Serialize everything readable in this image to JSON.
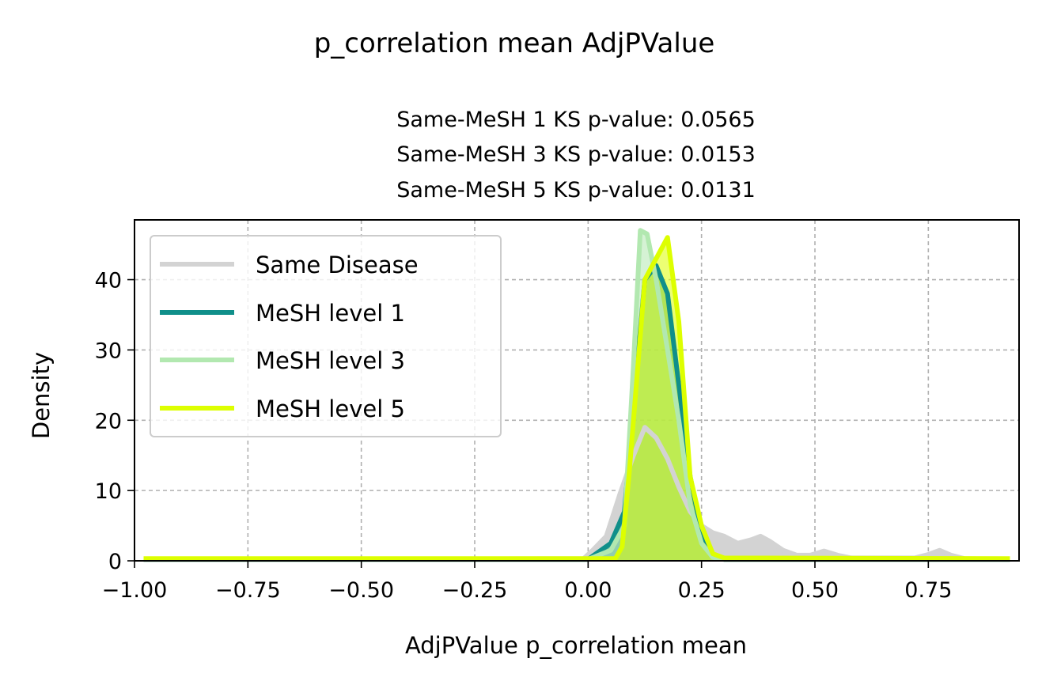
{
  "chart_data": {
    "type": "area",
    "suptitle": "p_correlation mean AdjPValue",
    "title_lines": [
      "Same-MeSH 1 KS p-value: 0.0565",
      "Same-MeSH 3 KS p-value: 0.0153",
      "Same-MeSH 5 KS p-value: 0.0131"
    ],
    "xlabel": "AdjPValue p_correlation mean",
    "ylabel": "Density",
    "xlim": [
      -1.0,
      0.95
    ],
    "ylim": [
      0,
      48.5
    ],
    "xticks": [
      -1.0,
      -0.75,
      -0.5,
      -0.25,
      0.0,
      0.25,
      0.5,
      0.75
    ],
    "xtick_labels": [
      "−1.00",
      "−0.75",
      "−0.50",
      "−0.25",
      "0.00",
      "0.25",
      "0.50",
      "0.75"
    ],
    "yticks": [
      0,
      10,
      20,
      30,
      40
    ],
    "ytick_labels": [
      "0",
      "10",
      "20",
      "30",
      "40"
    ],
    "grid": true,
    "legend_position": "upper-left",
    "series": [
      {
        "name": "Same Disease",
        "color": "#d3d3d3",
        "x": [
          -0.98,
          -0.01,
          0.01,
          0.04,
          0.07,
          0.1,
          0.125,
          0.15,
          0.175,
          0.2,
          0.225,
          0.25,
          0.275,
          0.3,
          0.33,
          0.36,
          0.38,
          0.4,
          0.43,
          0.46,
          0.49,
          0.52,
          0.55,
          0.58,
          0.72,
          0.75,
          0.775,
          0.8,
          0.83,
          0.93
        ],
        "y": [
          0.2,
          0.3,
          1.5,
          3.5,
          9.5,
          15.0,
          19.0,
          17.5,
          14.5,
          10.5,
          7.0,
          5.0,
          4.0,
          3.5,
          2.5,
          3.0,
          3.5,
          2.8,
          1.5,
          0.8,
          0.8,
          1.4,
          0.8,
          0.4,
          0.4,
          0.9,
          1.5,
          0.8,
          0.3,
          0.2
        ]
      },
      {
        "name": "MeSH level 1",
        "color": "#108f8a",
        "x": [
          -0.98,
          0.0,
          0.05,
          0.08,
          0.1,
          0.125,
          0.15,
          0.175,
          0.2,
          0.225,
          0.25,
          0.275,
          0.3,
          0.93
        ],
        "y": [
          0.2,
          0.2,
          2.5,
          7.0,
          22.0,
          40.0,
          42.0,
          38.0,
          25.0,
          12.0,
          4.0,
          0.8,
          0.2,
          0.2
        ]
      },
      {
        "name": "MeSH level 3",
        "color": "#b2e8b0",
        "x": [
          -0.98,
          0.0,
          0.05,
          0.08,
          0.1,
          0.115,
          0.13,
          0.15,
          0.175,
          0.2,
          0.225,
          0.25,
          0.275,
          0.3,
          0.93
        ],
        "y": [
          0.2,
          0.2,
          1.5,
          5.0,
          28.0,
          47.0,
          46.5,
          40.0,
          30.0,
          20.0,
          8.0,
          2.5,
          0.5,
          0.2,
          0.2
        ]
      },
      {
        "name": "MeSH level 5",
        "color": "#ddff00",
        "x": [
          -0.98,
          0.06,
          0.075,
          0.09,
          0.11,
          0.125,
          0.15,
          0.175,
          0.2,
          0.225,
          0.25,
          0.275,
          0.3,
          0.93
        ],
        "y": [
          0.3,
          0.3,
          2.0,
          12.0,
          28.0,
          40.0,
          43.0,
          46.0,
          34.0,
          12.0,
          5.0,
          1.0,
          0.4,
          0.3
        ]
      }
    ]
  }
}
